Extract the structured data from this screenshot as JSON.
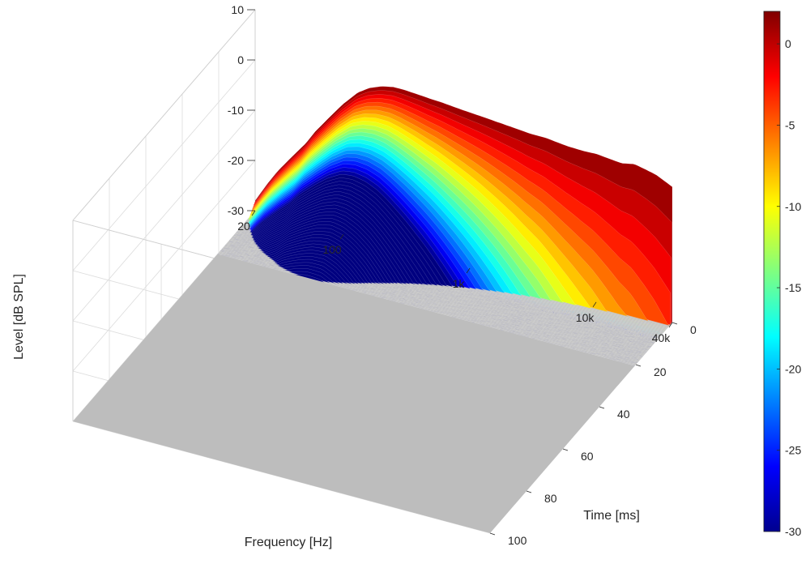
{
  "chart_data": {
    "type": "waterfall-3d",
    "title": "",
    "xlabel": "Frequency [Hz]",
    "ylabel": "Time [ms]",
    "zlabel": "Level [dB SPL]",
    "x_scale": "log",
    "xlim": [
      20,
      40000
    ],
    "ylim": [
      0,
      100
    ],
    "zlim": [
      -30,
      10
    ],
    "x_ticks": [
      "20",
      "100",
      "1k",
      "10k",
      "40k"
    ],
    "x_tick_values": [
      20,
      100,
      1000,
      10000,
      40000
    ],
    "y_ticks": [
      "0",
      "20",
      "40",
      "60",
      "80",
      "100"
    ],
    "y_tick_values": [
      0,
      20,
      40,
      60,
      80,
      100
    ],
    "z_ticks": [
      "10",
      "0",
      "-10",
      "-20",
      "-30"
    ],
    "z_tick_values": [
      10,
      0,
      -10,
      -20,
      -30
    ],
    "colorbar": {
      "range": [
        -30,
        2
      ],
      "ticks": [
        "0",
        "-5",
        "-10",
        "-15",
        "-20",
        "-25",
        "-30"
      ],
      "tick_values": [
        0,
        -5,
        -10,
        -15,
        -20,
        -25,
        -30
      ],
      "colormap": "jet"
    },
    "floor_color": "#bdbdbd",
    "grid": true,
    "initial_response": {
      "frequency_hz": [
        20,
        25,
        30,
        40,
        50,
        60,
        80,
        100,
        130,
        160,
        200,
        250,
        300,
        400,
        500,
        600,
        800,
        1000,
        1300,
        1600,
        2000,
        2500,
        3000,
        4000,
        5000,
        6000,
        8000,
        10000,
        13000,
        16000,
        20000,
        25000,
        30000,
        40000
      ],
      "level_db": [
        -28,
        -24,
        -21,
        -17,
        -14,
        -11,
        -7,
        -4,
        -1,
        0.5,
        1.5,
        2,
        2,
        1.8,
        1.6,
        1.5,
        1.2,
        1,
        0.8,
        0.6,
        0.4,
        0.2,
        0,
        0,
        -0.3,
        -0.5,
        -0.6,
        -0.5,
        -0.8,
        -1,
        -0.5,
        -1,
        -1.5,
        -3
      ]
    }
  }
}
